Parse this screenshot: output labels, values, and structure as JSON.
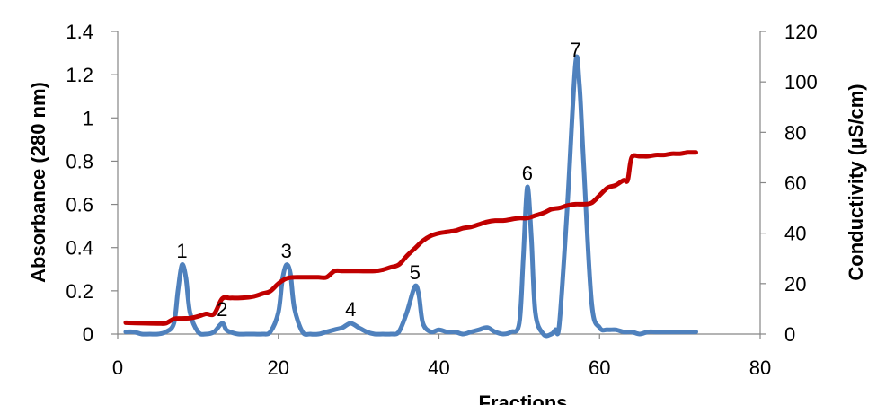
{
  "chart_data": {
    "type": "line",
    "xlabel": "Fractions",
    "ylabel_left": "Absorbance (280 nm)",
    "ylabel_right": "Conductivity (µS/cm)",
    "xlim": [
      0,
      80
    ],
    "ylim_left": [
      0,
      1.4
    ],
    "ylim_right": [
      0,
      120
    ],
    "x_ticks": [
      0,
      20,
      40,
      60,
      80
    ],
    "x_tick_labels": [
      "0",
      "20",
      "40",
      "60",
      "80"
    ],
    "y_left_ticks": [
      0,
      0.2,
      0.4,
      0.6,
      0.8,
      1.0,
      1.2,
      1.4
    ],
    "y_left_tick_labels": [
      "0",
      "0.2",
      "0.4",
      "0.6",
      "0.8",
      "1",
      "1.2",
      "1.4"
    ],
    "y_right_ticks": [
      0,
      20,
      40,
      60,
      80,
      100,
      120
    ],
    "y_right_tick_labels": [
      "0",
      "20",
      "40",
      "60",
      "80",
      "100",
      "120"
    ],
    "grid": false,
    "series": [
      {
        "color": "#4f81bd",
        "axis": "left",
        "points": [
          [
            1,
            0.01
          ],
          [
            2,
            0.01
          ],
          [
            3,
            0.0
          ],
          [
            4,
            0.0
          ],
          [
            5,
            0.0
          ],
          [
            6,
            0.01
          ],
          [
            7,
            0.05
          ],
          [
            7.5,
            0.2
          ],
          [
            8,
            0.32
          ],
          [
            8.5,
            0.26
          ],
          [
            9,
            0.1
          ],
          [
            10,
            0.01
          ],
          [
            11,
            0.0
          ],
          [
            12,
            0.01
          ],
          [
            13,
            0.05
          ],
          [
            13.5,
            0.02
          ],
          [
            14,
            0.01
          ],
          [
            15,
            0.0
          ],
          [
            16,
            0.0
          ],
          [
            17,
            0.0
          ],
          [
            18,
            0.0
          ],
          [
            19,
            0.01
          ],
          [
            20,
            0.1
          ],
          [
            20.5,
            0.25
          ],
          [
            21,
            0.32
          ],
          [
            21.5,
            0.28
          ],
          [
            22,
            0.12
          ],
          [
            23,
            0.01
          ],
          [
            24,
            0.0
          ],
          [
            25,
            0.0
          ],
          [
            26,
            0.01
          ],
          [
            27,
            0.02
          ],
          [
            28,
            0.03
          ],
          [
            29,
            0.05
          ],
          [
            30,
            0.03
          ],
          [
            31,
            0.01
          ],
          [
            32,
            0.0
          ],
          [
            33,
            0.0
          ],
          [
            34,
            0.0
          ],
          [
            35,
            0.01
          ],
          [
            36,
            0.1
          ],
          [
            37,
            0.22
          ],
          [
            37.5,
            0.18
          ],
          [
            38,
            0.05
          ],
          [
            39,
            0.01
          ],
          [
            40,
            0.02
          ],
          [
            41,
            0.01
          ],
          [
            42,
            0.01
          ],
          [
            43,
            0.0
          ],
          [
            44,
            0.01
          ],
          [
            45,
            0.02
          ],
          [
            46,
            0.03
          ],
          [
            47,
            0.01
          ],
          [
            48,
            0.0
          ],
          [
            49,
            0.01
          ],
          [
            50,
            0.05
          ],
          [
            50.5,
            0.35
          ],
          [
            51,
            0.68
          ],
          [
            51.5,
            0.45
          ],
          [
            52,
            0.1
          ],
          [
            53,
            0.0
          ],
          [
            54,
            0.0
          ],
          [
            54.5,
            0.02
          ],
          [
            55,
            0.05
          ],
          [
            56,
            0.6
          ],
          [
            57,
            1.25
          ],
          [
            57.5,
            1.15
          ],
          [
            58,
            0.8
          ],
          [
            59,
            0.15
          ],
          [
            60,
            0.03
          ],
          [
            61,
            0.02
          ],
          [
            62,
            0.02
          ],
          [
            63,
            0.01
          ],
          [
            64,
            0.01
          ],
          [
            65,
            0.0
          ],
          [
            66,
            0.01
          ],
          [
            67,
            0.01
          ],
          [
            68,
            0.01
          ],
          [
            69,
            0.01
          ],
          [
            70,
            0.01
          ],
          [
            71,
            0.01
          ],
          [
            72,
            0.01
          ]
        ]
      },
      {
        "color": "#c00000",
        "axis": "right",
        "points": [
          [
            1,
            4.5
          ],
          [
            3,
            4.3
          ],
          [
            5,
            4.2
          ],
          [
            6,
            4.3
          ],
          [
            7,
            6
          ],
          [
            8,
            6.2
          ],
          [
            9,
            6.3
          ],
          [
            10,
            7
          ],
          [
            11,
            8
          ],
          [
            12,
            8
          ],
          [
            13,
            14
          ],
          [
            14,
            14.3
          ],
          [
            15,
            14.3
          ],
          [
            16,
            14.5
          ],
          [
            17,
            15
          ],
          [
            18,
            16
          ],
          [
            19,
            17
          ],
          [
            20,
            20
          ],
          [
            21,
            22
          ],
          [
            22,
            22.5
          ],
          [
            23,
            22.5
          ],
          [
            24,
            22.5
          ],
          [
            25,
            22.5
          ],
          [
            26,
            22.5
          ],
          [
            27,
            25
          ],
          [
            28,
            25
          ],
          [
            29,
            25
          ],
          [
            30,
            25
          ],
          [
            32,
            25
          ],
          [
            33,
            25.5
          ],
          [
            34,
            26.5
          ],
          [
            35,
            27.5
          ],
          [
            36,
            31
          ],
          [
            37,
            34
          ],
          [
            38,
            37
          ],
          [
            39,
            39
          ],
          [
            40,
            40
          ],
          [
            41,
            40.5
          ],
          [
            42,
            41
          ],
          [
            43,
            42
          ],
          [
            44,
            42.5
          ],
          [
            45,
            43.5
          ],
          [
            46,
            44.5
          ],
          [
            47,
            45
          ],
          [
            48,
            45
          ],
          [
            49,
            45.5
          ],
          [
            50,
            46
          ],
          [
            51,
            46
          ],
          [
            52,
            47
          ],
          [
            53,
            48
          ],
          [
            54,
            49.5
          ],
          [
            55,
            50
          ],
          [
            56,
            51
          ],
          [
            57,
            51.5
          ],
          [
            58,
            51.5
          ],
          [
            59,
            52
          ],
          [
            60,
            55
          ],
          [
            61,
            58
          ],
          [
            62,
            59
          ],
          [
            63,
            61
          ],
          [
            63.5,
            61
          ],
          [
            64,
            70
          ],
          [
            65,
            70.5
          ],
          [
            66,
            70.5
          ],
          [
            67,
            71
          ],
          [
            68,
            71
          ],
          [
            69,
            71.5
          ],
          [
            70,
            71.5
          ],
          [
            71,
            72
          ],
          [
            72,
            72
          ]
        ]
      }
    ],
    "annotations": [
      {
        "text": "1",
        "x": 8,
        "y": 0.32
      },
      {
        "text": "2",
        "x": 13,
        "y": 0.05
      },
      {
        "text": "3",
        "x": 21,
        "y": 0.32
      },
      {
        "text": "4",
        "x": 29,
        "y": 0.05
      },
      {
        "text": "5",
        "x": 37,
        "y": 0.22
      },
      {
        "text": "6",
        "x": 51,
        "y": 0.68
      },
      {
        "text": "7",
        "x": 57,
        "y": 1.25
      }
    ]
  }
}
